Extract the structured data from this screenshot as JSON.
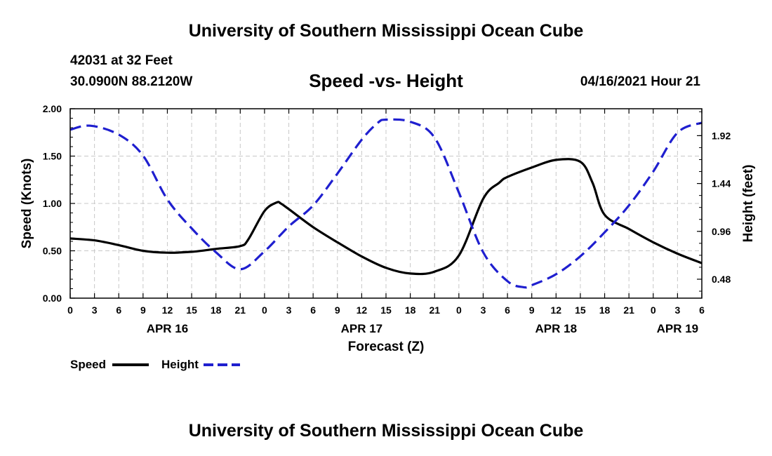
{
  "header": {
    "title": "University of Southern Mississippi Ocean Cube",
    "station": "42031 at 32 Feet",
    "coords": "30.0900N  88.2120W",
    "chart_title": "Speed -vs- Height",
    "datetime": "04/16/2021 Hour 21"
  },
  "footer": {
    "title": "University of Southern Mississippi Ocean Cube"
  },
  "legend": {
    "speed": "Speed",
    "height": "Height"
  },
  "colors": {
    "speed": "#000000",
    "height": "#1f1fcf",
    "grid": "#c8c8c8"
  },
  "chart_data": {
    "type": "line",
    "title": "Speed -vs- Height",
    "xlabel": "Forecast (Z)",
    "ylabel": "Speed (Knots)",
    "y2label": "Height (feet)",
    "x_unit": "hours since 2021-04-16 00Z",
    "xlim": [
      0,
      78
    ],
    "ylim": [
      0,
      2.0
    ],
    "y2lim": [
      0.29,
      2.19
    ],
    "grid": true,
    "x_ticks": [
      0,
      3,
      6,
      9,
      12,
      15,
      18,
      21,
      24,
      27,
      30,
      33,
      36,
      39,
      42,
      45,
      48,
      51,
      54,
      57,
      60,
      63,
      66,
      69,
      72,
      75,
      78
    ],
    "x_tick_labels": [
      "0",
      "3",
      "6",
      "9",
      "12",
      "15",
      "18",
      "21",
      "0",
      "3",
      "6",
      "9",
      "12",
      "15",
      "18",
      "21",
      "0",
      "3",
      "6",
      "9",
      "12",
      "15",
      "18",
      "21",
      "0",
      "3",
      "6"
    ],
    "y_ticks": [
      0,
      0.5,
      1.0,
      1.5,
      2.0
    ],
    "y_tick_labels": [
      "0.00",
      "0.50",
      "1.00",
      "1.50",
      "2.00"
    ],
    "y2_ticks": [
      0.48,
      0.96,
      1.44,
      1.92
    ],
    "y2_tick_labels": [
      "0.48",
      "0.96",
      "1.44",
      "1.92"
    ],
    "date_labels": [
      {
        "label": "APR 16",
        "x": 12
      },
      {
        "label": "APR 17",
        "x": 36
      },
      {
        "label": "APR 18",
        "x": 60
      },
      {
        "label": "APR 19",
        "x": 75
      }
    ],
    "series": [
      {
        "name": "Speed",
        "axis": "left",
        "style": "solid",
        "x": [
          0,
          3,
          6,
          9,
          12,
          15,
          18,
          21,
          22,
          24,
          25.5,
          26,
          27,
          30,
          33,
          36,
          39,
          42,
          45,
          48,
          51,
          53,
          54,
          57,
          60,
          63,
          64.5,
          66,
          69,
          72,
          75,
          78
        ],
        "values": [
          0.63,
          0.61,
          0.56,
          0.5,
          0.48,
          0.49,
          0.52,
          0.55,
          0.62,
          0.92,
          1.01,
          1.0,
          0.94,
          0.75,
          0.59,
          0.44,
          0.32,
          0.26,
          0.28,
          0.45,
          1.05,
          1.22,
          1.28,
          1.38,
          1.46,
          1.44,
          1.22,
          0.88,
          0.73,
          0.59,
          0.47,
          0.37
        ]
      },
      {
        "name": "Height",
        "axis": "right",
        "style": "dashed",
        "x": [
          0,
          2.5,
          6,
          9,
          12,
          15,
          18,
          21,
          24,
          27,
          30,
          33,
          36,
          38,
          39,
          42,
          45,
          48,
          51,
          54,
          56,
          57,
          60,
          63,
          66,
          69,
          72,
          75,
          78
        ],
        "values": [
          1.98,
          2.02,
          1.93,
          1.72,
          1.28,
          0.99,
          0.75,
          0.58,
          0.76,
          1.01,
          1.22,
          1.54,
          1.88,
          2.05,
          2.08,
          2.06,
          1.9,
          1.35,
          0.75,
          0.46,
          0.4,
          0.42,
          0.53,
          0.71,
          0.95,
          1.22,
          1.56,
          1.95,
          2.05
        ]
      }
    ]
  }
}
